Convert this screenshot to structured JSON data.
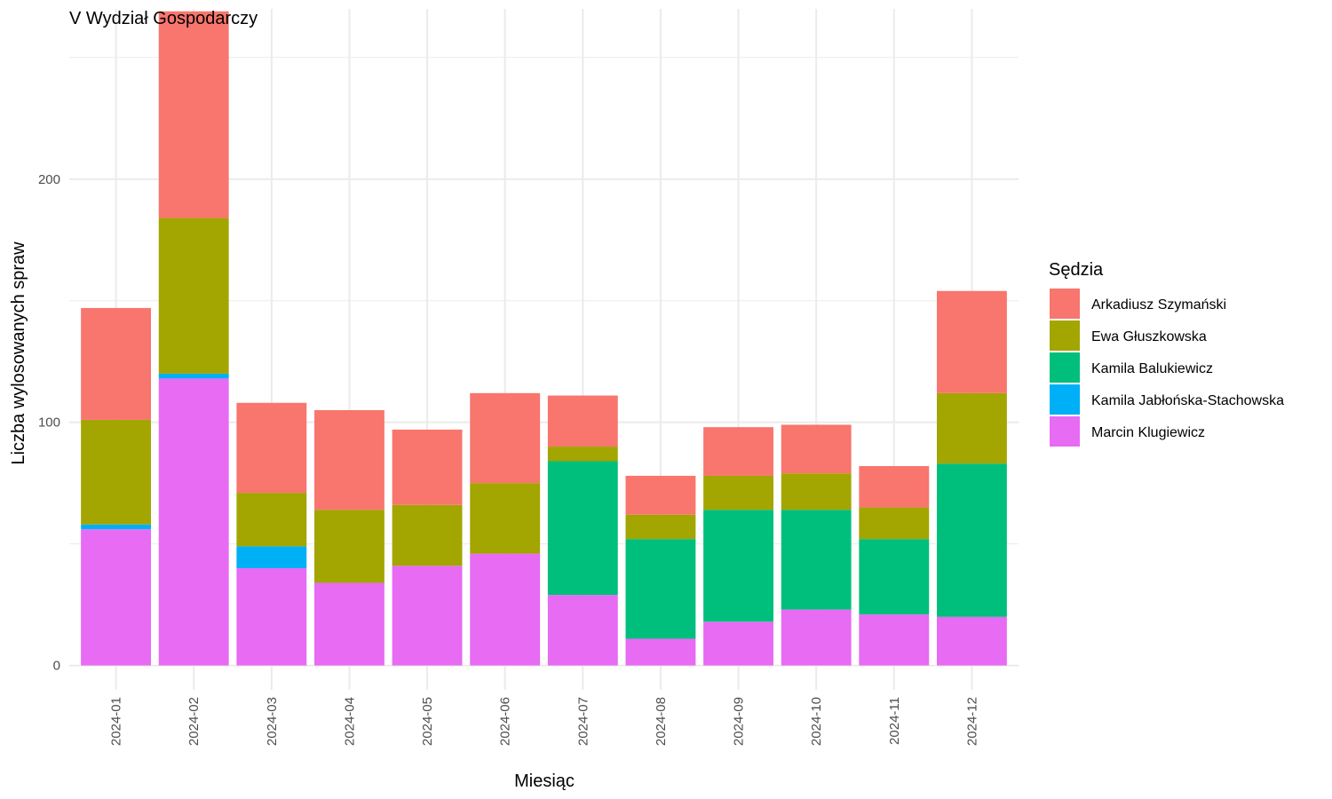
{
  "chart_data": {
    "type": "bar",
    "stacked": true,
    "title": "V Wydział Gospodarczy",
    "xlabel": "Miesiąc",
    "ylabel": "Liczba wylosowanych spraw",
    "ylim": [
      -10,
      270
    ],
    "yticks": [
      0,
      100,
      200
    ],
    "grid": true,
    "legend_title": "Sędzia",
    "legend_position": "right",
    "categories": [
      "2024-01",
      "2024-02",
      "2024-03",
      "2024-04",
      "2024-05",
      "2024-06",
      "2024-07",
      "2024-08",
      "2024-09",
      "2024-10",
      "2024-11",
      "2024-12"
    ],
    "series": [
      {
        "name": "Marcin Klugiewicz",
        "color": "#E76BF3",
        "values": [
          56,
          118,
          40,
          34,
          41,
          46,
          29,
          11,
          18,
          23,
          21,
          20
        ]
      },
      {
        "name": "Kamila Jabłońska-Stachowska",
        "color": "#00B0F6",
        "values": [
          2,
          2,
          9,
          0,
          0,
          0,
          0,
          0,
          0,
          0,
          0,
          0
        ]
      },
      {
        "name": "Kamila Balukiewicz",
        "color": "#00BF7D",
        "values": [
          0,
          0,
          0,
          0,
          0,
          0,
          55,
          41,
          46,
          41,
          31,
          63
        ]
      },
      {
        "name": "Ewa Głuszkowska",
        "color": "#A3A500",
        "values": [
          43,
          64,
          22,
          30,
          25,
          29,
          6,
          10,
          14,
          15,
          13,
          29
        ]
      },
      {
        "name": "Arkadiusz Szymański",
        "color": "#F8766D",
        "values": [
          46,
          85,
          37,
          41,
          31,
          37,
          21,
          16,
          20,
          20,
          17,
          42
        ]
      }
    ],
    "legend_order": [
      "Arkadiusz Szymański",
      "Ewa Głuszkowska",
      "Kamila Balukiewicz",
      "Kamila Jabłońska-Stachowska",
      "Marcin Klugiewicz"
    ]
  }
}
